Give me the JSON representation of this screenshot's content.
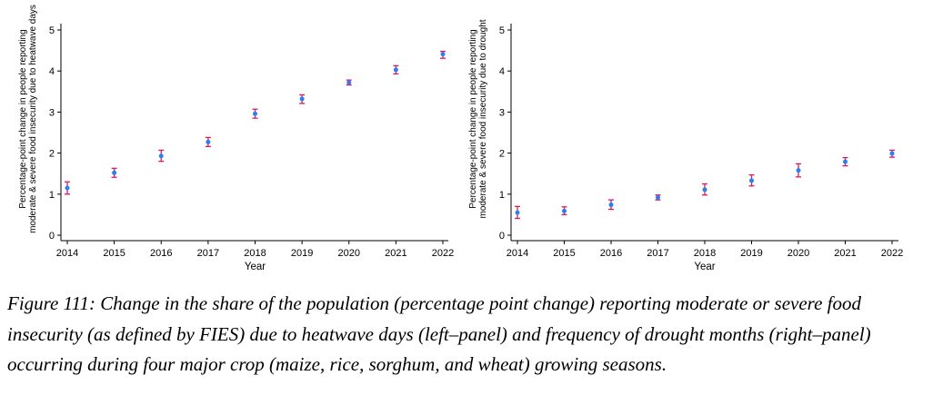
{
  "chart_data": [
    {
      "type": "scatter",
      "panel": "left",
      "xlabel": "Year",
      "ylabel_lines": [
        "Percentage-point change in people reporting",
        "moderate & severe food insecurity due to heatwave days"
      ],
      "ylim": [
        0,
        5
      ],
      "yticks": [
        "0",
        "1",
        "2",
        "3",
        "4",
        "5"
      ],
      "categories": [
        "2014",
        "2015",
        "2016",
        "2017",
        "2018",
        "2019",
        "2020",
        "2021",
        "2022"
      ],
      "values": [
        1.15,
        1.52,
        1.93,
        2.27,
        2.96,
        3.32,
        3.72,
        4.03,
        4.41
      ],
      "ci_low": [
        1.0,
        1.41,
        1.8,
        2.16,
        2.85,
        3.21,
        3.66,
        3.93,
        4.31
      ],
      "ci_high": [
        1.3,
        1.63,
        2.07,
        2.38,
        3.07,
        3.42,
        3.78,
        4.13,
        4.48
      ],
      "point_color": "#2b7ff0",
      "error_color": "#d81b60"
    },
    {
      "type": "scatter",
      "panel": "right",
      "xlabel": "Year",
      "ylabel_lines": [
        "Percentage-point change in people reporting",
        "moderate & severe food insecurity due to drought"
      ],
      "ylim": [
        0,
        5
      ],
      "yticks": [
        "0",
        "1",
        "2",
        "3",
        "4",
        "5"
      ],
      "categories": [
        "2014",
        "2015",
        "2016",
        "2017",
        "2018",
        "2019",
        "2020",
        "2021",
        "2022"
      ],
      "values": [
        0.55,
        0.59,
        0.74,
        0.92,
        1.11,
        1.33,
        1.58,
        1.79,
        1.99
      ],
      "ci_low": [
        0.41,
        0.5,
        0.63,
        0.86,
        0.98,
        1.2,
        1.42,
        1.69,
        1.9
      ],
      "ci_high": [
        0.7,
        0.69,
        0.86,
        0.98,
        1.25,
        1.47,
        1.74,
        1.89,
        2.07
      ],
      "point_color": "#2b7ff0",
      "error_color": "#d81b60"
    }
  ],
  "caption": "Figure 111: Change in the share of the population (percentage point change) reporting moderate or severe food insecurity (as defined by FIES) due to heatwave days (left–panel) and frequency of drought months (right–panel) occurring during four major crop (maize, rice, sorghum, and wheat) growing seasons."
}
